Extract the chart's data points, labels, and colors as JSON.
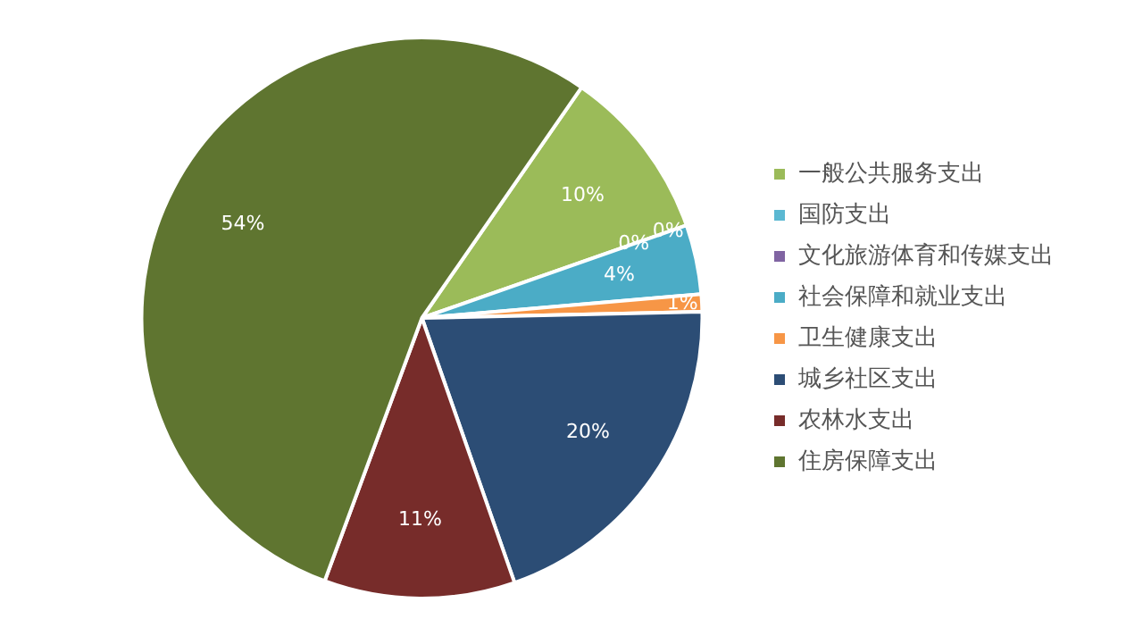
{
  "chart_data": {
    "type": "pie",
    "categories": [
      "一般公共服务支出",
      "国防支出",
      "文化旅游体育和传媒支出",
      "社会保障和就业支出",
      "卫生健康支出",
      "城乡社区支出",
      "农林水支出",
      "住房保障支出"
    ],
    "values": [
      10,
      0,
      0,
      4,
      1,
      20,
      11,
      54
    ],
    "colors": [
      "#9bbb59",
      "#5bb8d2",
      "#8064a2",
      "#4bacc6",
      "#f79646",
      "#2c4d75",
      "#772c2a",
      "#5f7530"
    ],
    "value_labels": [
      "10%",
      "0%",
      "0%",
      "4%",
      "1%",
      "20%",
      "11%",
      "54%"
    ],
    "legend": "right"
  }
}
